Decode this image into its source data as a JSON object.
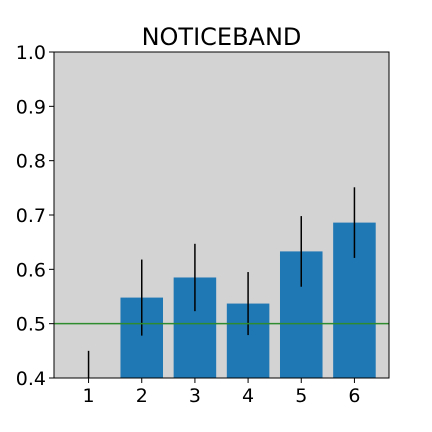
{
  "chart_data": {
    "type": "bar",
    "title": "NOTICEBAND",
    "xlabel": "",
    "ylabel": "",
    "categories": [
      "1",
      "2",
      "3",
      "4",
      "5",
      "6"
    ],
    "values": [
      0.39,
      0.548,
      0.585,
      0.537,
      0.633,
      0.686
    ],
    "errors": [
      0.06,
      0.07,
      0.062,
      0.058,
      0.065,
      0.065
    ],
    "ylim": [
      0.4,
      1.0
    ],
    "yticks": [
      "0.4",
      "0.5",
      "0.6",
      "0.7",
      "0.8",
      "0.9",
      "1.0"
    ],
    "reference_line": {
      "value": 0.5,
      "color": "#2e8b2e"
    },
    "bar_color": "#1f77b4",
    "error_color": "#000000",
    "plot_background": "#d3d3d3",
    "grid": false,
    "legend": "none"
  }
}
